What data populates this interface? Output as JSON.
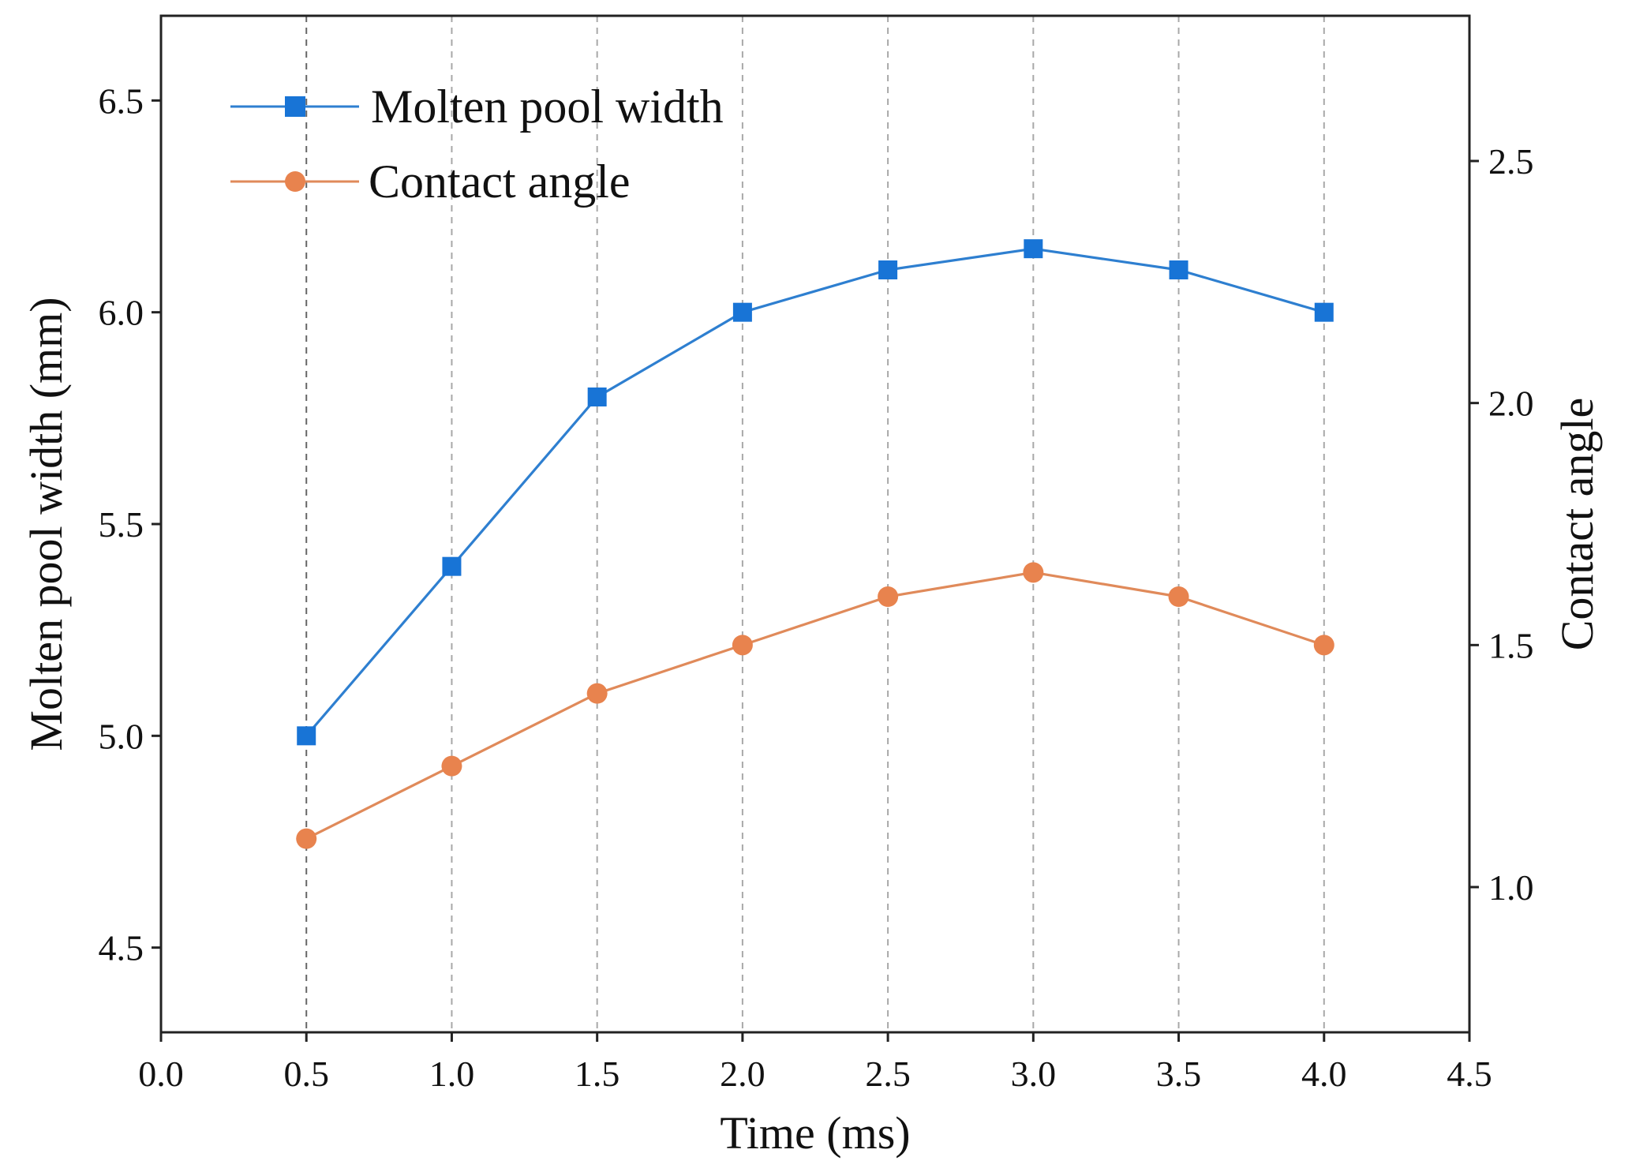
{
  "chart_data": {
    "type": "line",
    "title": "",
    "xlabel": "Time (ms)",
    "ylabel": "Molten pool width (mm)",
    "y2label": "Contact angle",
    "xlim": [
      0.0,
      4.5
    ],
    "ylim": [
      4.3,
      6.7
    ],
    "y2lim": [
      0.7,
      2.8
    ],
    "x_ticks": [
      "0.0",
      "0.5",
      "1.0",
      "1.5",
      "2.0",
      "2.5",
      "3.0",
      "3.5",
      "4.0",
      "4.5"
    ],
    "y_ticks": [
      "4.5",
      "5.0",
      "5.5",
      "6.0",
      "6.5"
    ],
    "y2_ticks": [
      "1.0",
      "1.5",
      "2.0",
      "2.5"
    ],
    "grid": "vertical dashed at data x values",
    "legend_position": "top-left",
    "x": [
      0.5,
      1.0,
      1.5,
      2.0,
      2.5,
      3.0,
      3.5,
      4.0
    ],
    "series": [
      {
        "name": "Molten pool width",
        "axis": "left",
        "marker": "square",
        "color": "#2e7fd0",
        "marker_color": "#1874d6",
        "values": [
          5.0,
          5.4,
          5.8,
          6.0,
          6.1,
          6.15,
          6.1,
          6.0
        ]
      },
      {
        "name": "Contact angle",
        "axis": "right",
        "marker": "circle",
        "color": "#e08a5a",
        "marker_color": "#e8834e",
        "values": [
          1.1,
          1.25,
          1.4,
          1.5,
          1.6,
          1.65,
          1.6,
          1.5
        ]
      }
    ]
  }
}
